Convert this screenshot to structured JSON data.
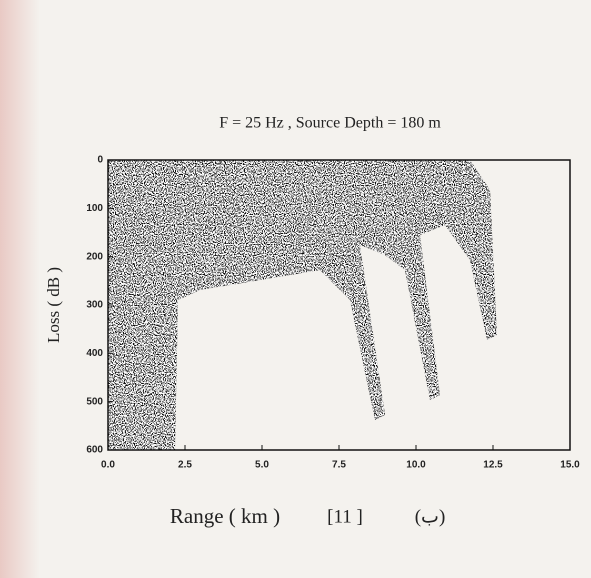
{
  "chart_data": {
    "type": "transmission-loss",
    "title": "F = 25 Hz  ,  Source Depth = 180 m",
    "x_label": "Range ( km )",
    "y_label": "Loss ( dB )",
    "annotations": [
      "[11 ]",
      "(ب)"
    ],
    "xlim": [
      0,
      15
    ],
    "xticks": [
      {
        "value": 0,
        "label": "0.0"
      },
      2.5,
      {
        "value": 5,
        "label": "5.0"
      },
      7.5,
      {
        "value": 10,
        "label": "10.0"
      },
      12.5,
      {
        "value": 15,
        "label": "15.0"
      }
    ],
    "ylim": [
      0,
      600
    ],
    "yticks": [
      0,
      100,
      200,
      300,
      400,
      500,
      600
    ],
    "y_inverted": true
  }
}
